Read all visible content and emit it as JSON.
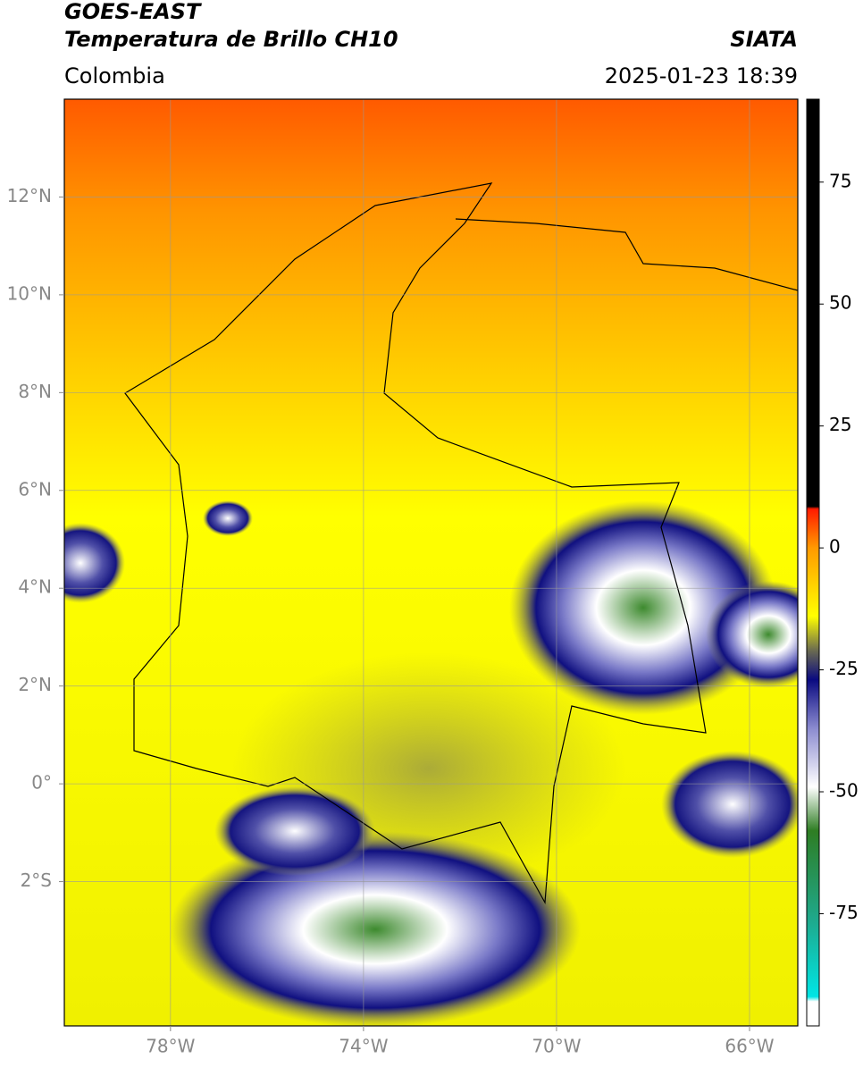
{
  "header": {
    "title": "GOES-EAST",
    "subtitle": "Temperatura de Brillo CH10",
    "region": "Colombia",
    "source": "SIATA",
    "datetime": "2025-01-23 18:39"
  },
  "chart_data": {
    "type": "map",
    "xlim": [
      -80.2,
      -65
    ],
    "ylim": [
      -4.95,
      14
    ],
    "xticks": [
      {
        "value": -78,
        "label": "78°W"
      },
      {
        "value": -74,
        "label": "74°W"
      },
      {
        "value": -70,
        "label": "70°W"
      },
      {
        "value": -66,
        "label": "66°W"
      }
    ],
    "yticks": [
      {
        "value": 12,
        "label": "12°N"
      },
      {
        "value": 10,
        "label": "10°N"
      },
      {
        "value": 8,
        "label": "8°N"
      },
      {
        "value": 6,
        "label": "6°N"
      },
      {
        "value": 4,
        "label": "4°N"
      },
      {
        "value": 2,
        "label": "2°N"
      },
      {
        "value": 0,
        "label": "0°"
      },
      {
        "value": -2,
        "label": "2°S"
      }
    ],
    "grid": true,
    "colorbar": {
      "lim": [
        -98,
        92
      ],
      "ticks": [
        75,
        50,
        25,
        0,
        -25,
        -50,
        -75
      ],
      "colormap": [
        {
          "value": -98,
          "color": "#ffffff"
        },
        {
          "value": -93,
          "color": "#ffffff"
        },
        {
          "value": -92,
          "color": "#00e5e5"
        },
        {
          "value": -76,
          "color": "#1fa88a"
        },
        {
          "value": -58,
          "color": "#2e7d23"
        },
        {
          "value": -49,
          "color": "#ffffff"
        },
        {
          "value": -37,
          "color": "#8b8bd0"
        },
        {
          "value": -27,
          "color": "#0a0a80"
        },
        {
          "value": -21,
          "color": "#6b6b50"
        },
        {
          "value": -14,
          "color": "#ffff00"
        },
        {
          "value": 0,
          "color": "#ff9a00"
        },
        {
          "value": 8,
          "color": "#ff1a00"
        },
        {
          "value": 8.5,
          "color": "#000000"
        },
        {
          "value": 92,
          "color": "#000000"
        }
      ]
    }
  }
}
